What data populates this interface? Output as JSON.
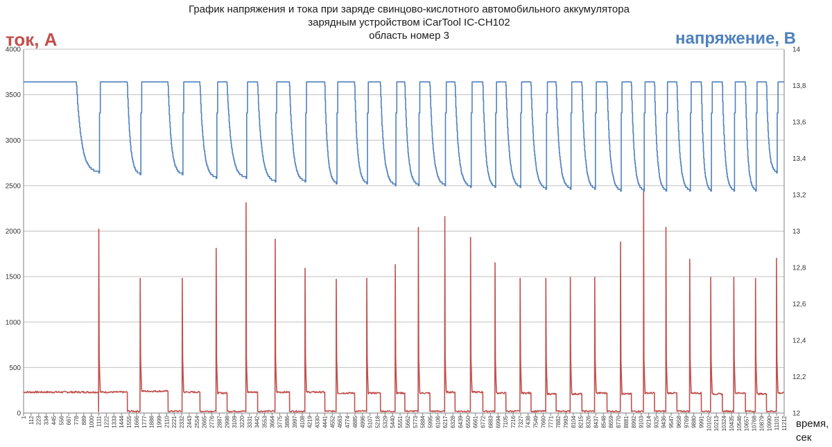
{
  "chart_data": {
    "type": "line",
    "title_lines": [
      "График напряжения и тока при заряде свинцово-кислотного автомобильного аккумулятора",
      "зарядным устройством iCarTool IC-CH102",
      "область номер 3"
    ],
    "left_axis": {
      "label": "ток, А",
      "ylim": [
        0,
        4000
      ],
      "ticks": [
        0,
        500,
        1000,
        1500,
        2000,
        2500,
        3000,
        3500,
        4000
      ]
    },
    "right_axis": {
      "label": "напряжение, В",
      "ylim": [
        12,
        14
      ],
      "ticks": [
        "12",
        "12,2",
        "12,4",
        "12,6",
        "12,8",
        "13",
        "13,2",
        "13,4",
        "13,6",
        "13,8",
        "14"
      ]
    },
    "x_axis": {
      "label_lines": [
        "время,",
        "сек"
      ],
      "xlim": [
        1,
        11212
      ],
      "tick_labels": [
        "1",
        "112",
        "223",
        "334",
        "445",
        "556",
        "667",
        "778",
        "889",
        "1000",
        "1111",
        "1222",
        "1333",
        "1444",
        "1555",
        "1666",
        "1777",
        "1888",
        "1999",
        "2110",
        "2221",
        "2332",
        "2443",
        "2554",
        "2665",
        "2776",
        "2887",
        "2998",
        "3109",
        "3220",
        "3331",
        "3442",
        "3553",
        "3664",
        "3775",
        "3886",
        "3997",
        "4108",
        "4219",
        "4330",
        "4441",
        "4552",
        "4663",
        "4774",
        "4885",
        "4996",
        "5107",
        "5218",
        "5329",
        "5440",
        "5551",
        "5662",
        "5773",
        "5884",
        "5995",
        "6106",
        "6217",
        "6328",
        "6439",
        "6550",
        "6661",
        "6772",
        "6883",
        "6994",
        "7105",
        "7216",
        "7327",
        "7438",
        "7549",
        "7660",
        "7771",
        "7882",
        "7993",
        "8104",
        "8215",
        "8326",
        "8437",
        "8548",
        "8659",
        "8770",
        "8881",
        "8992",
        "9103",
        "9214",
        "9325",
        "9436",
        "9547",
        "9658",
        "9769",
        "9880",
        "9991",
        "10102",
        "10213",
        "10324",
        "10435",
        "10546",
        "10657",
        "10768",
        "10879",
        "10990",
        "11101",
        "11212"
      ]
    },
    "grid": "horizontal",
    "colors": {
      "current": "#c0504d",
      "voltage": "#4f81bd",
      "grid": "#bfbfbf"
    },
    "series": [
      {
        "axis": "left",
        "color": "#c0504d",
        "initial_level": 230,
        "cycles": [
          {
            "start": 1110,
            "end": 1530,
            "peak": 2020,
            "on_level": 230
          },
          {
            "start": 1720,
            "end": 2130,
            "peak": 1480,
            "on_level": 240
          },
          {
            "start": 2340,
            "end": 2600,
            "peak": 1480,
            "on_level": 230
          },
          {
            "start": 2840,
            "end": 3000,
            "peak": 1810,
            "on_level": 220
          },
          {
            "start": 3280,
            "end": 3450,
            "peak": 2310,
            "on_level": 230
          },
          {
            "start": 3710,
            "end": 3920,
            "peak": 1910,
            "on_level": 230
          },
          {
            "start": 4150,
            "end": 4440,
            "peak": 1590,
            "on_level": 230
          },
          {
            "start": 4610,
            "end": 4880,
            "peak": 1470,
            "on_level": 220
          },
          {
            "start": 5060,
            "end": 5260,
            "peak": 1480,
            "on_level": 220
          },
          {
            "start": 5480,
            "end": 5620,
            "peak": 1630,
            "on_level": 220
          },
          {
            "start": 5820,
            "end": 5990,
            "peak": 2040,
            "on_level": 220
          },
          {
            "start": 6210,
            "end": 6360,
            "peak": 2160,
            "on_level": 230
          },
          {
            "start": 6590,
            "end": 6770,
            "peak": 1930,
            "on_level": 230
          },
          {
            "start": 6950,
            "end": 7110,
            "peak": 1650,
            "on_level": 220
          },
          {
            "start": 7320,
            "end": 7480,
            "peak": 1480,
            "on_level": 220
          },
          {
            "start": 7700,
            "end": 7850,
            "peak": 1480,
            "on_level": 210
          },
          {
            "start": 8060,
            "end": 8230,
            "peak": 1490,
            "on_level": 210
          },
          {
            "start": 8420,
            "end": 8600,
            "peak": 1490,
            "on_level": 220
          },
          {
            "start": 8800,
            "end": 8960,
            "peak": 1880,
            "on_level": 210
          },
          {
            "start": 9140,
            "end": 9300,
            "peak": 2450,
            "on_level": 220
          },
          {
            "start": 9470,
            "end": 9630,
            "peak": 2040,
            "on_level": 220
          },
          {
            "start": 9820,
            "end": 9990,
            "peak": 1690,
            "on_level": 220
          },
          {
            "start": 10130,
            "end": 10300,
            "peak": 1490,
            "on_level": 210
          },
          {
            "start": 10470,
            "end": 10640,
            "peak": 1490,
            "on_level": 220
          },
          {
            "start": 10790,
            "end": 10950,
            "peak": 1480,
            "on_level": 210
          },
          {
            "start": 11100,
            "end": 11212,
            "peak": 1700,
            "on_level": 220
          }
        ]
      },
      {
        "axis": "right",
        "color": "#4f81bd",
        "initial_level": 13.82,
        "cycles": [
          {
            "start": 1110,
            "end": 1530,
            "on_level": 13.82,
            "min": 13.32
          },
          {
            "start": 1720,
            "end": 2130,
            "on_level": 13.82,
            "min": 13.31
          },
          {
            "start": 2340,
            "end": 2600,
            "on_level": 13.82,
            "min": 13.31
          },
          {
            "start": 2840,
            "end": 3000,
            "on_level": 13.82,
            "min": 13.29
          },
          {
            "start": 3280,
            "end": 3450,
            "on_level": 13.82,
            "min": 13.29
          },
          {
            "start": 3710,
            "end": 3920,
            "on_level": 13.82,
            "min": 13.27
          },
          {
            "start": 4150,
            "end": 4440,
            "on_level": 13.82,
            "min": 13.27
          },
          {
            "start": 4610,
            "end": 4880,
            "on_level": 13.82,
            "min": 13.26
          },
          {
            "start": 5060,
            "end": 5260,
            "on_level": 13.82,
            "min": 13.26
          },
          {
            "start": 5480,
            "end": 5620,
            "on_level": 13.82,
            "min": 13.25
          },
          {
            "start": 5820,
            "end": 5990,
            "on_level": 13.82,
            "min": 13.25
          },
          {
            "start": 6210,
            "end": 6360,
            "on_level": 13.82,
            "min": 13.25
          },
          {
            "start": 6590,
            "end": 6770,
            "on_level": 13.82,
            "min": 13.24
          },
          {
            "start": 6950,
            "end": 7110,
            "on_level": 13.82,
            "min": 13.24
          },
          {
            "start": 7320,
            "end": 7480,
            "on_level": 13.82,
            "min": 13.24
          },
          {
            "start": 7700,
            "end": 7850,
            "on_level": 13.82,
            "min": 13.23
          },
          {
            "start": 8060,
            "end": 8230,
            "on_level": 13.82,
            "min": 13.23
          },
          {
            "start": 8420,
            "end": 8600,
            "on_level": 13.82,
            "min": 13.23
          },
          {
            "start": 8800,
            "end": 8960,
            "on_level": 13.82,
            "min": 13.22
          },
          {
            "start": 9140,
            "end": 9300,
            "on_level": 13.82,
            "min": 13.22
          },
          {
            "start": 9470,
            "end": 9630,
            "on_level": 13.82,
            "min": 13.22
          },
          {
            "start": 9820,
            "end": 9990,
            "on_level": 13.82,
            "min": 13.22
          },
          {
            "start": 10130,
            "end": 10300,
            "on_level": 13.82,
            "min": 13.22
          },
          {
            "start": 10470,
            "end": 10640,
            "on_level": 13.82,
            "min": 13.22
          },
          {
            "start": 10790,
            "end": 10950,
            "on_level": 13.82,
            "min": 13.22
          },
          {
            "start": 11100,
            "end": 11212,
            "on_level": 13.82,
            "min": 13.32
          }
        ]
      }
    ]
  }
}
